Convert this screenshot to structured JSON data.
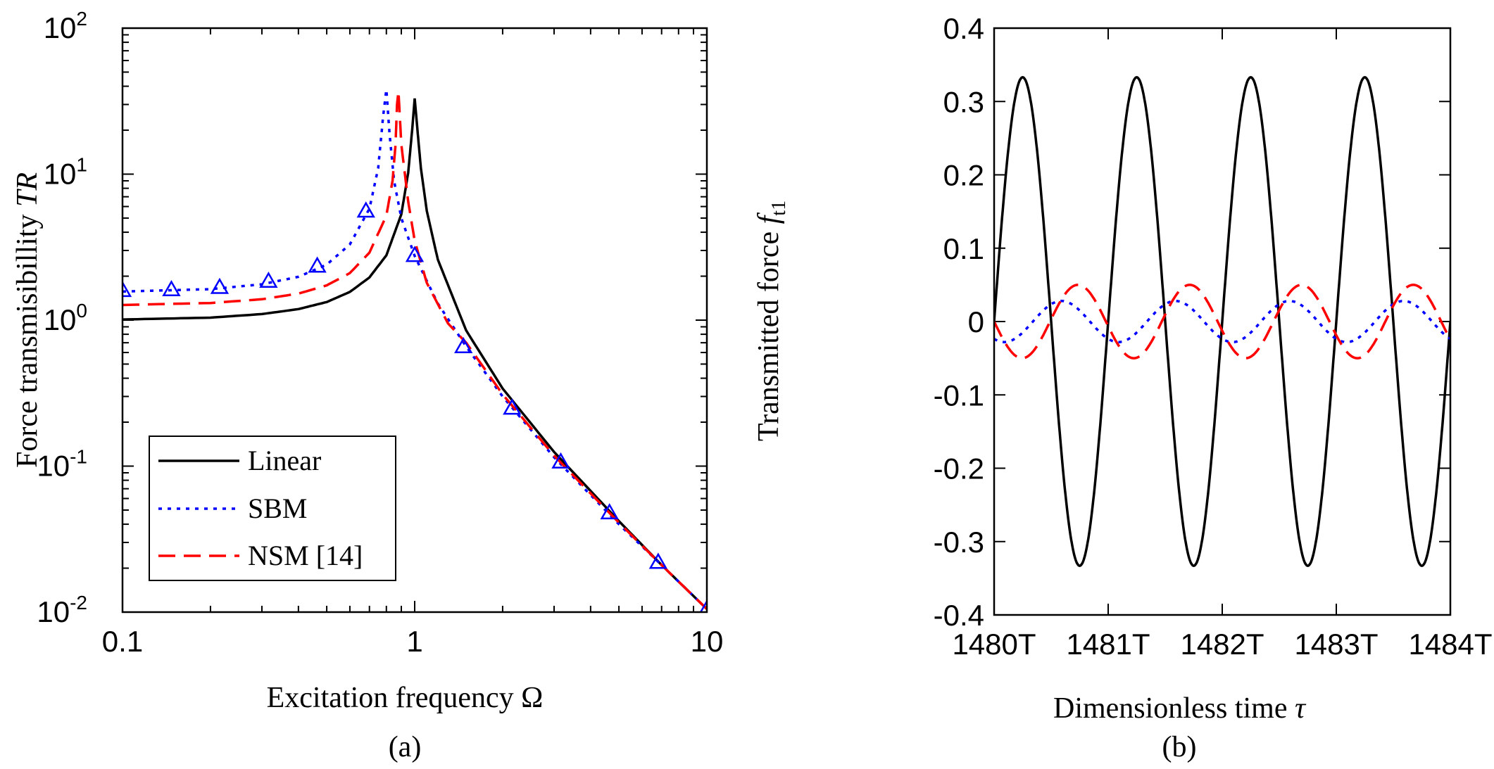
{
  "chart_data": [
    {
      "id": "a",
      "type": "line",
      "panel_label": "(a)",
      "title": "",
      "xlabel": "Excitation frequency Ω",
      "ylabel_main": "Force transmisibillity ",
      "ylabel_italic": "TR",
      "xscale": "log",
      "yscale": "log",
      "xlim": [
        0.1,
        10
      ],
      "ylim": [
        0.01,
        100
      ],
      "xticks": [
        {
          "value": 0.1,
          "label": "0.1"
        },
        {
          "value": 1,
          "label": "1"
        },
        {
          "value": 10,
          "label": "10"
        }
      ],
      "yticks": [
        {
          "value": 0.01,
          "base": "10",
          "exp": "-2"
        },
        {
          "value": 0.1,
          "base": "10",
          "exp": "-1"
        },
        {
          "value": 1,
          "base": "10",
          "exp": "0"
        },
        {
          "value": 10,
          "base": "10",
          "exp": "1"
        },
        {
          "value": 100,
          "base": "10",
          "exp": "2"
        }
      ],
      "legend_position": "bottom-left",
      "series": [
        {
          "name": "Linear",
          "style": "solid",
          "color": "#000000",
          "x": [
            0.1,
            0.2,
            0.3,
            0.4,
            0.5,
            0.6,
            0.7,
            0.8,
            0.9,
            0.95,
            0.98,
            1.0,
            1.02,
            1.05,
            1.1,
            1.2,
            1.5,
            2,
            3,
            5,
            7,
            10
          ],
          "y": [
            1.01,
            1.04,
            1.1,
            1.19,
            1.33,
            1.56,
            1.96,
            2.78,
            5.3,
            10.2,
            20,
            33,
            21,
            11,
            5.6,
            2.6,
            0.85,
            0.34,
            0.125,
            0.042,
            0.021,
            0.0105
          ]
        },
        {
          "name": "SBM",
          "style": "dotted",
          "color": "#0000ff",
          "x": [
            0.1,
            0.2,
            0.3,
            0.4,
            0.5,
            0.6,
            0.7,
            0.75,
            0.78,
            0.8,
            0.82,
            0.85,
            0.9,
            1.0,
            1.2,
            1.5,
            2,
            3,
            5,
            7,
            10
          ],
          "y": [
            1.57,
            1.63,
            1.76,
            1.98,
            2.4,
            3.3,
            5.8,
            11,
            25,
            38,
            19,
            9,
            5,
            2.75,
            1.3,
            0.66,
            0.3,
            0.115,
            0.04,
            0.021,
            0.0105
          ]
        },
        {
          "name": "NSM [14]",
          "style": "dashed",
          "color": "#ff0000",
          "x": [
            0.1,
            0.2,
            0.3,
            0.4,
            0.5,
            0.6,
            0.7,
            0.8,
            0.84,
            0.86,
            0.87,
            0.88,
            0.9,
            0.95,
            1.0,
            1.1,
            1.3,
            1.5,
            2,
            3,
            5,
            7,
            10
          ],
          "y": [
            1.27,
            1.31,
            1.39,
            1.52,
            1.73,
            2.1,
            2.9,
            5.2,
            9,
            16,
            30,
            37,
            16,
            6.5,
            3.5,
            1.8,
            0.95,
            0.7,
            0.31,
            0.118,
            0.041,
            0.021,
            0.0105
          ]
        },
        {
          "name": "SBM (markers)",
          "style": "markers",
          "marker": "triangle",
          "color": "#0000ff",
          "x": [
            0.1,
            0.147,
            0.215,
            0.316,
            0.464,
            0.681,
            1.0,
            1.468,
            2.154,
            3.162,
            4.642,
            6.813,
            10
          ],
          "y": [
            1.6,
            1.62,
            1.68,
            1.85,
            2.35,
            5.6,
            2.78,
            0.66,
            0.25,
            0.107,
            0.048,
            0.022,
            0.0105
          ]
        }
      ]
    },
    {
      "id": "b",
      "type": "line",
      "panel_label": "(b)",
      "title": "",
      "xlabel_main": "Dimensionless time ",
      "xlabel_italic": "τ",
      "ylabel_main": "Transmitted force ",
      "ylabel_italic": "f",
      "ylabel_sub": "t1",
      "xlim": [
        1480,
        1484
      ],
      "ylim": [
        -0.4,
        0.4
      ],
      "xticks": [
        {
          "value": 1480,
          "label": "1480T"
        },
        {
          "value": 1481,
          "label": "1481T"
        },
        {
          "value": 1482,
          "label": "1482T"
        },
        {
          "value": 1483,
          "label": "1483T"
        },
        {
          "value": 1484,
          "label": "1484T"
        }
      ],
      "yticks": [
        {
          "value": 0.4,
          "label": "0.4"
        },
        {
          "value": 0.3,
          "label": "0.3"
        },
        {
          "value": 0.2,
          "label": "0.2"
        },
        {
          "value": 0.1,
          "label": "0.1"
        },
        {
          "value": 0,
          "label": "0"
        },
        {
          "value": -0.1,
          "label": "-0.1"
        },
        {
          "value": -0.2,
          "label": "-0.2"
        },
        {
          "value": -0.3,
          "label": "-0.3"
        },
        {
          "value": -0.4,
          "label": "-0.4"
        }
      ],
      "series": [
        {
          "name": "Linear",
          "style": "solid",
          "color": "#000000",
          "amplitude": 0.333,
          "period": 1,
          "phase": 0
        },
        {
          "name": "SBM",
          "style": "dotted",
          "color": "#0000ff",
          "amplitude": 0.028,
          "period": 1,
          "phase": -0.34
        },
        {
          "name": "NSM [14]",
          "style": "dashed",
          "color": "#ff0000",
          "amplitude": 0.05,
          "period": 0.98,
          "phase": -0.5
        }
      ]
    }
  ]
}
